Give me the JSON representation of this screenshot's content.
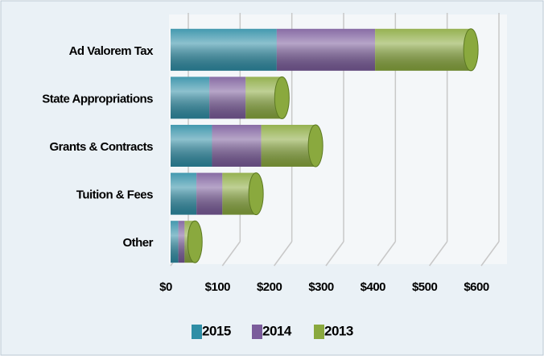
{
  "chart_data": {
    "type": "stacked_bar",
    "orientation": "horizontal",
    "categories": [
      "Ad Valorem Tax",
      "State   Appropriations",
      "Grants & Contracts",
      "Tuition & Fees",
      "Other"
    ],
    "series": [
      {
        "name": "2015",
        "color": "#2f8ea6",
        "values": [
          205,
          75,
          80,
          50,
          15
        ]
      },
      {
        "name": "2014",
        "color": "#7b5c9b",
        "values": [
          190,
          70,
          95,
          50,
          12
        ]
      },
      {
        "name": "2013",
        "color": "#8aa93e",
        "values": [
          185,
          70,
          105,
          65,
          20
        ]
      }
    ],
    "xlim": [
      0,
      600
    ],
    "xticks": [
      {
        "value": 0,
        "label": "$0"
      },
      {
        "value": 100,
        "label": "$100"
      },
      {
        "value": 200,
        "label": "$200"
      },
      {
        "value": 300,
        "label": "$300"
      },
      {
        "value": 400,
        "label": "$400"
      },
      {
        "value": 500,
        "label": "$500"
      },
      {
        "value": 600,
        "label": "$600"
      }
    ],
    "grid": true,
    "legend": "bottom"
  }
}
